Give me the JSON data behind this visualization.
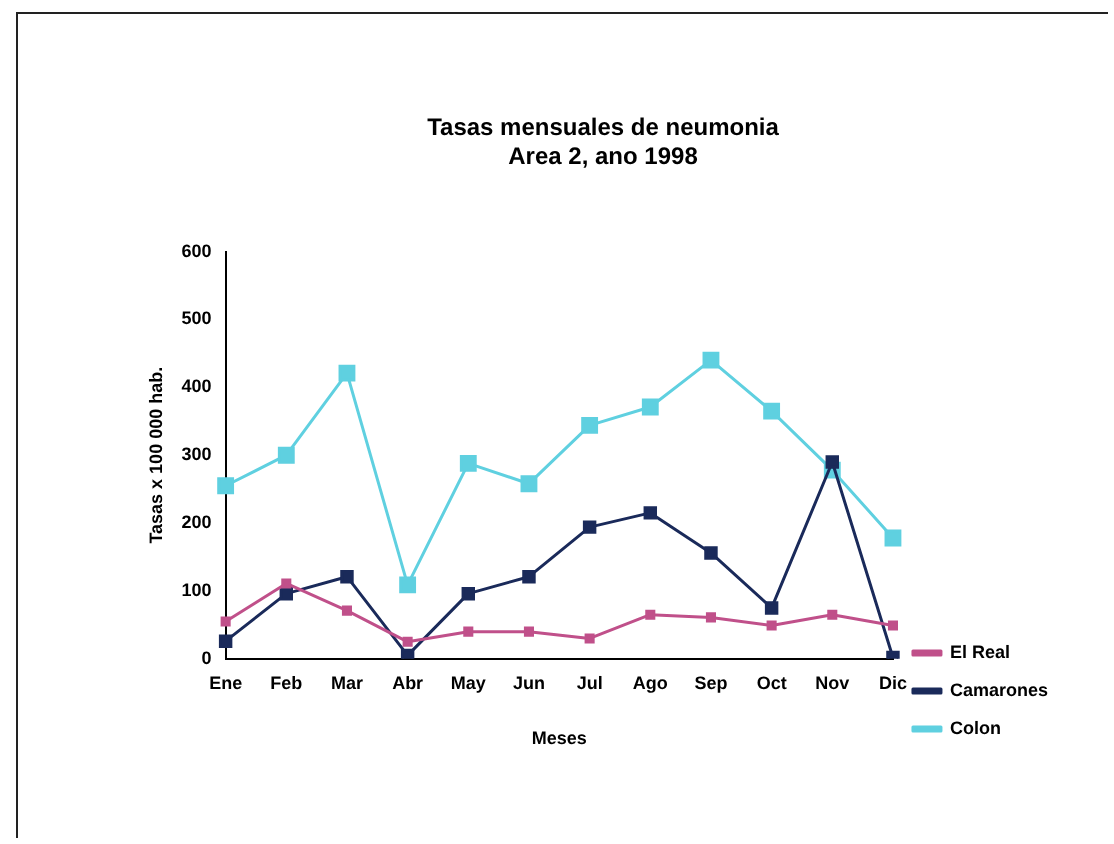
{
  "chart_data": {
    "type": "line",
    "title": "Tasas mensuales de neumonia\nArea 2, ano 1998",
    "xlabel": "Meses",
    "ylabel": "Tasas x 100 000 hab.",
    "categories": [
      "Ene",
      "Feb",
      "Mar",
      "Abr",
      "May",
      "Jun",
      "Jul",
      "Ago",
      "Sep",
      "Oct",
      "Nov",
      "Dic"
    ],
    "series": [
      {
        "name": "El Real",
        "color": "#c0508a",
        "values": [
          55,
          111,
          71,
          25,
          40,
          40,
          30,
          65,
          61,
          49,
          65,
          49
        ]
      },
      {
        "name": "Camarones",
        "color": "#1a2a5a",
        "values": [
          26,
          96,
          121,
          5,
          96,
          121,
          194,
          215,
          156,
          75,
          290,
          2
        ]
      },
      {
        "name": "Colon",
        "color": "#5fd0e0",
        "values": [
          255,
          300,
          421,
          109,
          288,
          258,
          344,
          371,
          440,
          365,
          278,
          178
        ]
      }
    ],
    "ylim": [
      0,
      600
    ],
    "yticks": [
      0,
      100,
      200,
      300,
      400,
      500,
      600
    ],
    "grid": false,
    "legend": "bottom right",
    "marker": "square",
    "line_style": "solid"
  }
}
